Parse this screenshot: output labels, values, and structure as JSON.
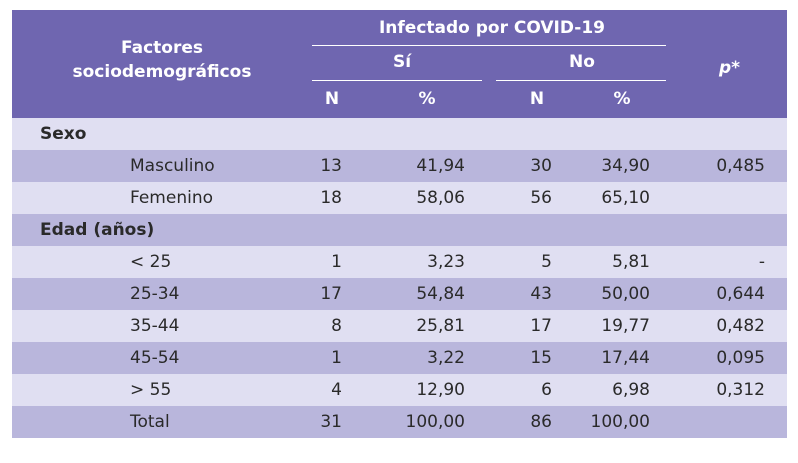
{
  "header": {
    "factors_line1": "Factores",
    "factors_line2": "sociodemográficos",
    "infected": "Infectado por COVID-19",
    "si": "Sí",
    "no": "No",
    "p": "p*",
    "n": "N",
    "pct": "%"
  },
  "rows": [
    {
      "type": "group",
      "label": "Sexo"
    },
    {
      "type": "data",
      "label": "Masculino",
      "n1": "13",
      "pct1": "41,94",
      "n2": "30",
      "pct2": "34,90",
      "p": "0,485"
    },
    {
      "type": "data",
      "label": "Femenino",
      "n1": "18",
      "pct1": "58,06",
      "n2": "56",
      "pct2": "65,10",
      "p": ""
    },
    {
      "type": "group",
      "label": "Edad (años)"
    },
    {
      "type": "data",
      "label": "< 25",
      "n1": "1",
      "pct1": "3,23",
      "n2": "5",
      "pct2": "5,81",
      "p": "-"
    },
    {
      "type": "data",
      "label": "25-34",
      "n1": "17",
      "pct1": "54,84",
      "n2": "43",
      "pct2": "50,00",
      "p": "0,644"
    },
    {
      "type": "data",
      "label": "35-44",
      "n1": "8",
      "pct1": "25,81",
      "n2": "17",
      "pct2": "19,77",
      "p": "0,482"
    },
    {
      "type": "data",
      "label": "45-54",
      "n1": "1",
      "pct1": "3,22",
      "n2": "15",
      "pct2": "17,44",
      "p": "0,095"
    },
    {
      "type": "data",
      "label": "> 55",
      "n1": "4",
      "pct1": "12,90",
      "n2": "6",
      "pct2": "6,98",
      "p": "0,312"
    },
    {
      "type": "data",
      "label": "Total",
      "n1": "31",
      "pct1": "100,00",
      "n2": "86",
      "pct2": "100,00",
      "p": ""
    }
  ]
}
